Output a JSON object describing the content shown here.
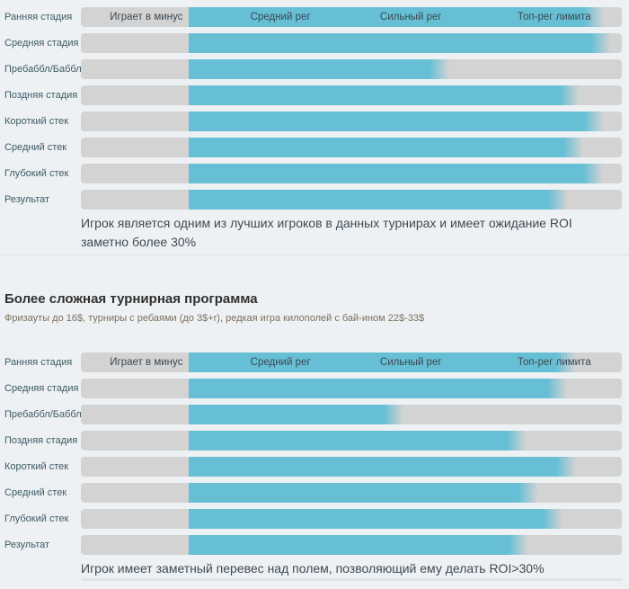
{
  "colors": {
    "bar_fill": "#67bfd5",
    "bar_track": "#d3d3d3",
    "page_background": "#eef1f4",
    "row_label": "#3d5964",
    "zone_label": "#3a4750",
    "note_text": "#3d4a54",
    "title_text": "#2f2f2f",
    "subtitle_text": "#7c6f5b",
    "divider": "#dde1e5"
  },
  "chart_data": [
    {
      "type": "bar",
      "orientation": "horizontal-gauge",
      "title": "",
      "zone_labels": [
        "Играет в минус",
        "Средний рег",
        "Сильный рег",
        "Топ-рег лимита"
      ],
      "zone_centers_pct": [
        12.1,
        36.9,
        61.0,
        87.5
      ],
      "fill_start_pct": 19.9,
      "categories": [
        "Ранняя стадия",
        "Средняя стадия",
        "Пребаббл/Баббл",
        "Поздняя стадия",
        "Короткий стек",
        "Средний стек",
        "Глубокий стек",
        "Результат"
      ],
      "values": [
        94.9,
        96.2,
        66.3,
        90.4,
        94.9,
        91.0,
        94.7,
        88.2
      ],
      "xlim": [
        0,
        100
      ],
      "grid": false,
      "legend": "none",
      "note": "Игрок является одним из лучших игроков в данных турнирах и имеет ожидание ROI заметно более 30%"
    },
    {
      "type": "bar",
      "orientation": "horizontal-gauge",
      "title": "Более сложная турнирная программа",
      "subtitle": "Фризауты до 16$, турниры с ребаями (до 3$+r), редкая игра килополей с бай-ином 22$-33$",
      "zone_labels": [
        "Играет в минус",
        "Средний рег",
        "Сильный рег",
        "Топ-рег лимита"
      ],
      "zone_centers_pct": [
        12.1,
        36.9,
        61.0,
        87.5
      ],
      "fill_start_pct": 19.9,
      "categories": [
        "Ранняя стадия",
        "Средняя стадия",
        "Пребаббл/Баббл",
        "Поздняя стадия",
        "Короткий стек",
        "Средний стек",
        "Глубокий стек",
        "Результат"
      ],
      "values": [
        89.7,
        88.0,
        57.8,
        80.6,
        89.7,
        82.7,
        87.2,
        80.9
      ],
      "xlim": [
        0,
        100
      ],
      "grid": false,
      "legend": "none",
      "note": "Игрок имеет заметный перевес над полем, позволяющий ему делать ROI>30%"
    }
  ]
}
